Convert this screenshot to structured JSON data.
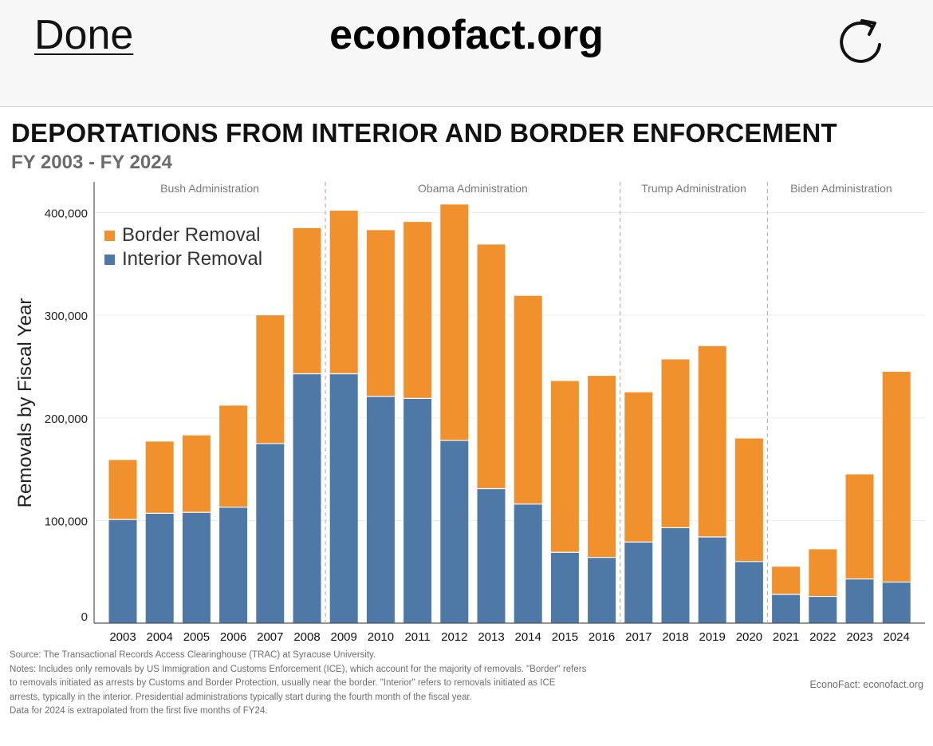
{
  "browser": {
    "done_label": "Done",
    "url": "econofact.org",
    "reload_icon": "reload-icon"
  },
  "header": {
    "title": "DEPORTATIONS FROM INTERIOR AND BORDER ENFORCEMENT",
    "subtitle": "FY 2003 - FY 2024"
  },
  "colors": {
    "border": "#f0912e",
    "interior": "#4e79a7",
    "grid": "#ececec",
    "axis": "#555555",
    "divider": "#b5b5b5"
  },
  "chart_data": {
    "type": "bar",
    "stacked": true,
    "title": "DEPORTATIONS FROM INTERIOR AND BORDER ENFORCEMENT",
    "subtitle": "FY 2003 - FY 2024",
    "xlabel": "",
    "ylabel": "Removals by Fiscal Year",
    "ylim": [
      0,
      430000
    ],
    "yticks": [
      0,
      100000,
      200000,
      300000,
      400000
    ],
    "ytick_labels": [
      "0",
      "100,000",
      "200,000",
      "300,000",
      "400,000"
    ],
    "legend_position": "top-left",
    "categories": [
      "2003",
      "2004",
      "2005",
      "2006",
      "2007",
      "2008",
      "2009",
      "2010",
      "2011",
      "2012",
      "2013",
      "2014",
      "2015",
      "2016",
      "2017",
      "2018",
      "2019",
      "2020",
      "2021",
      "2022",
      "2023",
      "2024"
    ],
    "series": [
      {
        "name": "Interior Removal",
        "color": "#4e79a7",
        "values": [
          101000,
          107000,
          108000,
          113000,
          175000,
          243000,
          243000,
          221000,
          219000,
          178000,
          131000,
          116000,
          69000,
          64000,
          79000,
          93000,
          84000,
          60000,
          28000,
          26000,
          43000,
          40000
        ]
      },
      {
        "name": "Border Removal",
        "color": "#f0912e",
        "values": [
          58000,
          70000,
          75000,
          99000,
          125000,
          142000,
          159000,
          162000,
          172000,
          230000,
          238000,
          203000,
          167000,
          177000,
          146000,
          164000,
          186000,
          120000,
          27000,
          46000,
          102000,
          205000
        ]
      }
    ],
    "legend": [
      "Border Removal",
      "Interior Removal"
    ],
    "administrations": [
      {
        "label": "Bush Administration",
        "from": "2003",
        "to": "2008"
      },
      {
        "label": "Obama Administration",
        "from": "2009",
        "to": "2016"
      },
      {
        "label": "Trump Administration",
        "from": "2017",
        "to": "2020"
      },
      {
        "label": "Biden Administration",
        "from": "2021",
        "to": "2024"
      }
    ]
  },
  "footer": {
    "lines": [
      "Source: The Transactional Records Access Clearinghouse (TRAC) at Syracuse University.",
      "Notes: Includes only removals by US Immigration and Customs Enforcement (ICE), which account for the majority of removals. \"Border\" refers",
      "to removals initiated as arrests by Customs and Border Protection, usually near the border. \"Interior\" refers to removals initiated as ICE",
      "arrests, typically in the interior. Presidential administrations typically start during the fourth month of the fiscal year.",
      "Data for 2024 is extrapolated from the first five months of FY24."
    ],
    "credit": "EconoFact:  econofact.org"
  }
}
